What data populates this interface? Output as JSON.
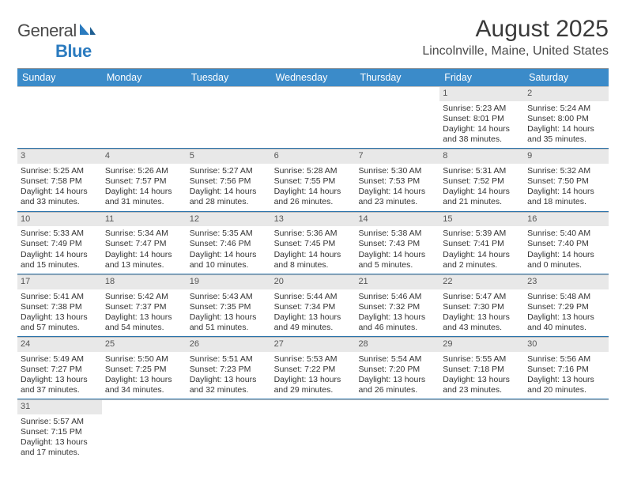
{
  "logo": {
    "text1": "General",
    "text2": "Blue"
  },
  "title": "August 2025",
  "subtitle": "Lincolnville, Maine, United States",
  "colors": {
    "header_bg": "#3b8bc9",
    "header_text": "#ffffff",
    "week_divider": "#2b73aa",
    "daynum_bg": "#e8e8e8",
    "cell_border": "#bfbfbf",
    "text": "#333333"
  },
  "dayHeaders": [
    "Sunday",
    "Monday",
    "Tuesday",
    "Wednesday",
    "Thursday",
    "Friday",
    "Saturday"
  ],
  "weeks": [
    [
      null,
      null,
      null,
      null,
      null,
      {
        "n": "1",
        "sr": "Sunrise: 5:23 AM",
        "ss": "Sunset: 8:01 PM",
        "d1": "Daylight: 14 hours",
        "d2": "and 38 minutes."
      },
      {
        "n": "2",
        "sr": "Sunrise: 5:24 AM",
        "ss": "Sunset: 8:00 PM",
        "d1": "Daylight: 14 hours",
        "d2": "and 35 minutes."
      }
    ],
    [
      {
        "n": "3",
        "sr": "Sunrise: 5:25 AM",
        "ss": "Sunset: 7:58 PM",
        "d1": "Daylight: 14 hours",
        "d2": "and 33 minutes."
      },
      {
        "n": "4",
        "sr": "Sunrise: 5:26 AM",
        "ss": "Sunset: 7:57 PM",
        "d1": "Daylight: 14 hours",
        "d2": "and 31 minutes."
      },
      {
        "n": "5",
        "sr": "Sunrise: 5:27 AM",
        "ss": "Sunset: 7:56 PM",
        "d1": "Daylight: 14 hours",
        "d2": "and 28 minutes."
      },
      {
        "n": "6",
        "sr": "Sunrise: 5:28 AM",
        "ss": "Sunset: 7:55 PM",
        "d1": "Daylight: 14 hours",
        "d2": "and 26 minutes."
      },
      {
        "n": "7",
        "sr": "Sunrise: 5:30 AM",
        "ss": "Sunset: 7:53 PM",
        "d1": "Daylight: 14 hours",
        "d2": "and 23 minutes."
      },
      {
        "n": "8",
        "sr": "Sunrise: 5:31 AM",
        "ss": "Sunset: 7:52 PM",
        "d1": "Daylight: 14 hours",
        "d2": "and 21 minutes."
      },
      {
        "n": "9",
        "sr": "Sunrise: 5:32 AM",
        "ss": "Sunset: 7:50 PM",
        "d1": "Daylight: 14 hours",
        "d2": "and 18 minutes."
      }
    ],
    [
      {
        "n": "10",
        "sr": "Sunrise: 5:33 AM",
        "ss": "Sunset: 7:49 PM",
        "d1": "Daylight: 14 hours",
        "d2": "and 15 minutes."
      },
      {
        "n": "11",
        "sr": "Sunrise: 5:34 AM",
        "ss": "Sunset: 7:47 PM",
        "d1": "Daylight: 14 hours",
        "d2": "and 13 minutes."
      },
      {
        "n": "12",
        "sr": "Sunrise: 5:35 AM",
        "ss": "Sunset: 7:46 PM",
        "d1": "Daylight: 14 hours",
        "d2": "and 10 minutes."
      },
      {
        "n": "13",
        "sr": "Sunrise: 5:36 AM",
        "ss": "Sunset: 7:45 PM",
        "d1": "Daylight: 14 hours",
        "d2": "and 8 minutes."
      },
      {
        "n": "14",
        "sr": "Sunrise: 5:38 AM",
        "ss": "Sunset: 7:43 PM",
        "d1": "Daylight: 14 hours",
        "d2": "and 5 minutes."
      },
      {
        "n": "15",
        "sr": "Sunrise: 5:39 AM",
        "ss": "Sunset: 7:41 PM",
        "d1": "Daylight: 14 hours",
        "d2": "and 2 minutes."
      },
      {
        "n": "16",
        "sr": "Sunrise: 5:40 AM",
        "ss": "Sunset: 7:40 PM",
        "d1": "Daylight: 14 hours",
        "d2": "and 0 minutes."
      }
    ],
    [
      {
        "n": "17",
        "sr": "Sunrise: 5:41 AM",
        "ss": "Sunset: 7:38 PM",
        "d1": "Daylight: 13 hours",
        "d2": "and 57 minutes."
      },
      {
        "n": "18",
        "sr": "Sunrise: 5:42 AM",
        "ss": "Sunset: 7:37 PM",
        "d1": "Daylight: 13 hours",
        "d2": "and 54 minutes."
      },
      {
        "n": "19",
        "sr": "Sunrise: 5:43 AM",
        "ss": "Sunset: 7:35 PM",
        "d1": "Daylight: 13 hours",
        "d2": "and 51 minutes."
      },
      {
        "n": "20",
        "sr": "Sunrise: 5:44 AM",
        "ss": "Sunset: 7:34 PM",
        "d1": "Daylight: 13 hours",
        "d2": "and 49 minutes."
      },
      {
        "n": "21",
        "sr": "Sunrise: 5:46 AM",
        "ss": "Sunset: 7:32 PM",
        "d1": "Daylight: 13 hours",
        "d2": "and 46 minutes."
      },
      {
        "n": "22",
        "sr": "Sunrise: 5:47 AM",
        "ss": "Sunset: 7:30 PM",
        "d1": "Daylight: 13 hours",
        "d2": "and 43 minutes."
      },
      {
        "n": "23",
        "sr": "Sunrise: 5:48 AM",
        "ss": "Sunset: 7:29 PM",
        "d1": "Daylight: 13 hours",
        "d2": "and 40 minutes."
      }
    ],
    [
      {
        "n": "24",
        "sr": "Sunrise: 5:49 AM",
        "ss": "Sunset: 7:27 PM",
        "d1": "Daylight: 13 hours",
        "d2": "and 37 minutes."
      },
      {
        "n": "25",
        "sr": "Sunrise: 5:50 AM",
        "ss": "Sunset: 7:25 PM",
        "d1": "Daylight: 13 hours",
        "d2": "and 34 minutes."
      },
      {
        "n": "26",
        "sr": "Sunrise: 5:51 AM",
        "ss": "Sunset: 7:23 PM",
        "d1": "Daylight: 13 hours",
        "d2": "and 32 minutes."
      },
      {
        "n": "27",
        "sr": "Sunrise: 5:53 AM",
        "ss": "Sunset: 7:22 PM",
        "d1": "Daylight: 13 hours",
        "d2": "and 29 minutes."
      },
      {
        "n": "28",
        "sr": "Sunrise: 5:54 AM",
        "ss": "Sunset: 7:20 PM",
        "d1": "Daylight: 13 hours",
        "d2": "and 26 minutes."
      },
      {
        "n": "29",
        "sr": "Sunrise: 5:55 AM",
        "ss": "Sunset: 7:18 PM",
        "d1": "Daylight: 13 hours",
        "d2": "and 23 minutes."
      },
      {
        "n": "30",
        "sr": "Sunrise: 5:56 AM",
        "ss": "Sunset: 7:16 PM",
        "d1": "Daylight: 13 hours",
        "d2": "and 20 minutes."
      }
    ],
    [
      {
        "n": "31",
        "sr": "Sunrise: 5:57 AM",
        "ss": "Sunset: 7:15 PM",
        "d1": "Daylight: 13 hours",
        "d2": "and 17 minutes."
      },
      null,
      null,
      null,
      null,
      null,
      null
    ]
  ]
}
